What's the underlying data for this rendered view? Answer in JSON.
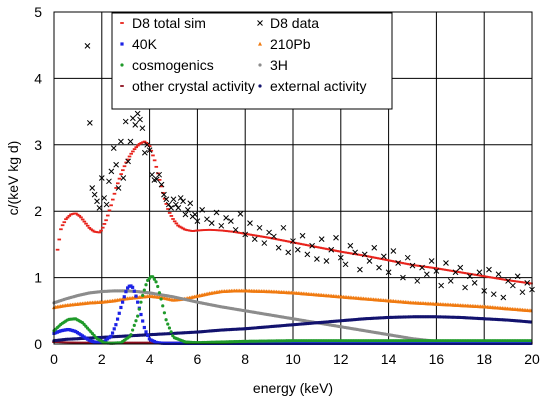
{
  "chart_data": {
    "type": "scatter",
    "xlabel": "energy (keV)",
    "ylabel": "c/(keV kg d)",
    "xlim": [
      0,
      20
    ],
    "ylim": [
      0,
      5
    ],
    "xticks": [
      "0",
      "2",
      "4",
      "6",
      "8",
      "10",
      "12",
      "14",
      "16",
      "18",
      "20"
    ],
    "yticks": [
      "0",
      "1",
      "2",
      "3",
      "4",
      "5"
    ],
    "grid": true,
    "legend_position": "top",
    "series": [
      {
        "name": "D8 total sim",
        "color": "#e8231c",
        "marker": "dash",
        "style": "dense",
        "x": [
          0.15,
          0.3,
          0.5,
          0.7,
          0.9,
          1.1,
          1.3,
          1.5,
          1.7,
          1.9,
          2.0,
          2.2,
          2.4,
          2.6,
          2.8,
          3.0,
          3.2,
          3.4,
          3.6,
          3.8,
          4.0,
          4.2,
          4.4,
          4.6,
          4.8,
          5.0,
          5.2,
          5.5,
          5.8,
          6.0,
          6.5,
          7.0,
          7.5,
          8.0,
          9.0,
          10.0,
          11.0,
          12.0,
          13.0,
          14.0,
          15.0,
          16.0,
          17.0,
          18.0,
          19.0,
          20.0
        ],
        "y": [
          1.42,
          1.75,
          1.88,
          1.95,
          1.97,
          1.92,
          1.83,
          1.74,
          1.69,
          1.68,
          1.72,
          1.88,
          2.1,
          2.35,
          2.55,
          2.72,
          2.85,
          2.95,
          3.02,
          3.05,
          2.98,
          2.78,
          2.5,
          2.22,
          2.0,
          1.87,
          1.78,
          1.72,
          1.7,
          1.71,
          1.72,
          1.71,
          1.69,
          1.66,
          1.6,
          1.53,
          1.46,
          1.39,
          1.33,
          1.26,
          1.19,
          1.14,
          1.08,
          1.02,
          0.96,
          0.91
        ]
      },
      {
        "name": "D8 data",
        "color": "#000000",
        "marker": "x",
        "style": "points",
        "x": [
          1.4,
          1.5,
          1.6,
          1.7,
          1.8,
          1.9,
          2.0,
          2.1,
          2.2,
          2.3,
          2.4,
          2.5,
          2.6,
          2.7,
          2.8,
          2.9,
          3.0,
          3.1,
          3.2,
          3.3,
          3.4,
          3.5,
          3.6,
          3.7,
          3.8,
          3.9,
          4.0,
          4.1,
          4.2,
          4.3,
          4.4,
          4.5,
          4.6,
          4.7,
          4.8,
          4.9,
          5.0,
          5.1,
          5.2,
          5.3,
          5.4,
          5.5,
          5.6,
          5.7,
          5.8,
          5.9,
          6.0,
          6.2,
          6.4,
          6.6,
          6.8,
          7.0,
          7.2,
          7.4,
          7.6,
          7.8,
          8.0,
          8.2,
          8.4,
          8.6,
          8.8,
          9.0,
          9.2,
          9.4,
          9.6,
          9.8,
          10.0,
          10.2,
          10.4,
          10.6,
          10.8,
          11.0,
          11.2,
          11.4,
          11.6,
          11.8,
          12.0,
          12.2,
          12.4,
          12.6,
          12.8,
          13.0,
          13.2,
          13.4,
          13.6,
          13.8,
          14.0,
          14.2,
          14.4,
          14.6,
          14.8,
          15.0,
          15.2,
          15.4,
          15.6,
          15.8,
          16.0,
          16.2,
          16.4,
          16.6,
          16.8,
          17.0,
          17.2,
          17.4,
          17.6,
          17.8,
          18.0,
          18.2,
          18.4,
          18.6,
          18.8,
          19.0,
          19.2,
          19.4,
          19.6,
          19.8,
          20.0
        ],
        "y": [
          4.49,
          3.33,
          2.35,
          2.25,
          2.15,
          2.05,
          2.5,
          2.2,
          2.1,
          2.45,
          2.6,
          2.95,
          2.7,
          2.35,
          3.05,
          2.5,
          3.35,
          2.75,
          3.05,
          3.4,
          3.3,
          3.47,
          3.38,
          3.25,
          2.88,
          3.0,
          2.92,
          2.55,
          2.47,
          2.48,
          2.55,
          2.4,
          2.25,
          2.18,
          2.1,
          2.05,
          2.18,
          2.1,
          2.05,
          2.2,
          2.15,
          1.95,
          2.02,
          2.12,
          1.92,
          1.95,
          1.85,
          2.02,
          1.88,
          1.82,
          1.98,
          1.78,
          1.9,
          1.85,
          1.72,
          1.96,
          1.65,
          1.82,
          1.58,
          1.75,
          1.52,
          1.68,
          1.62,
          1.45,
          1.75,
          1.38,
          1.55,
          1.42,
          1.63,
          1.35,
          1.48,
          1.28,
          1.58,
          1.25,
          1.42,
          1.6,
          1.3,
          1.2,
          1.48,
          1.38,
          1.12,
          1.35,
          1.25,
          1.45,
          1.15,
          1.32,
          1.08,
          1.4,
          1.22,
          1.0,
          1.3,
          1.18,
          0.95,
          1.15,
          1.05,
          1.25,
          1.1,
          0.88,
          1.22,
          0.95,
          1.08,
          1.15,
          0.85,
          1.02,
          0.92,
          1.08,
          0.8,
          1.12,
          0.75,
          1.05,
          0.7,
          0.95,
          0.88,
          1.02,
          0.78,
          0.92,
          0.82
        ]
      },
      {
        "name": "40K",
        "color": "#1c22e6",
        "marker": "square",
        "style": "dense",
        "x": [
          0.0,
          0.3,
          0.6,
          0.9,
          1.2,
          1.5,
          1.8,
          2.1,
          2.4,
          2.6,
          2.8,
          3.0,
          3.1,
          3.2,
          3.3,
          3.4,
          3.6,
          3.8,
          4.0,
          4.3,
          4.6,
          5.0,
          6.0,
          8.0,
          10.0,
          14.0,
          20.0
        ],
        "y": [
          0.16,
          0.2,
          0.22,
          0.19,
          0.12,
          0.05,
          0.02,
          0.04,
          0.12,
          0.3,
          0.55,
          0.78,
          0.86,
          0.88,
          0.85,
          0.76,
          0.5,
          0.22,
          0.07,
          0.02,
          0.01,
          0.01,
          0.01,
          0.01,
          0.01,
          0.01,
          0.01
        ]
      },
      {
        "name": "210Pb",
        "color": "#f07a10",
        "marker": "triangle",
        "style": "dense",
        "x": [
          0.0,
          0.5,
          1.0,
          1.5,
          2.0,
          2.5,
          3.0,
          3.5,
          4.0,
          4.5,
          5.0,
          5.5,
          6.0,
          6.5,
          7.0,
          7.5,
          8.0,
          9.0,
          10.0,
          11.0,
          12.0,
          13.0,
          14.0,
          15.0,
          16.0,
          17.0,
          18.0,
          19.0,
          20.0
        ],
        "y": [
          0.55,
          0.58,
          0.6,
          0.62,
          0.63,
          0.65,
          0.68,
          0.7,
          0.72,
          0.7,
          0.66,
          0.68,
          0.72,
          0.76,
          0.79,
          0.8,
          0.8,
          0.79,
          0.77,
          0.74,
          0.71,
          0.68,
          0.65,
          0.62,
          0.6,
          0.58,
          0.56,
          0.53,
          0.5
        ]
      },
      {
        "name": "cosmogenics",
        "color": "#1f9a2a",
        "marker": "circle",
        "style": "dense",
        "x": [
          0.0,
          0.3,
          0.6,
          0.9,
          1.2,
          1.5,
          1.8,
          2.1,
          2.4,
          2.8,
          3.2,
          3.5,
          3.7,
          3.9,
          4.1,
          4.3,
          4.5,
          4.7,
          5.0,
          5.5,
          6.0,
          8.0,
          10.0,
          14.0,
          20.0
        ],
        "y": [
          0.2,
          0.3,
          0.37,
          0.38,
          0.32,
          0.2,
          0.08,
          0.02,
          0.01,
          0.02,
          0.12,
          0.42,
          0.72,
          0.95,
          1.03,
          0.92,
          0.65,
          0.35,
          0.1,
          0.03,
          0.02,
          0.04,
          0.05,
          0.05,
          0.05
        ]
      },
      {
        "name": "3H",
        "color": "#8c8c8c",
        "marker": "circle",
        "style": "dense",
        "x": [
          0.0,
          0.5,
          1.0,
          1.5,
          2.0,
          2.5,
          3.0,
          3.5,
          4.0,
          4.5,
          5.0,
          5.5,
          6.0,
          7.0,
          8.0,
          9.0,
          10.0,
          11.0,
          12.0,
          13.0,
          14.0,
          15.0,
          16.0,
          17.0,
          18.0,
          19.0,
          20.0
        ],
        "y": [
          0.62,
          0.68,
          0.73,
          0.77,
          0.79,
          0.8,
          0.8,
          0.79,
          0.77,
          0.74,
          0.71,
          0.67,
          0.63,
          0.56,
          0.5,
          0.44,
          0.38,
          0.32,
          0.26,
          0.2,
          0.14,
          0.08,
          0.04,
          0.02,
          0.01,
          0.01,
          0.01
        ]
      },
      {
        "name": "other crystal activity",
        "color": "#8e0f1e",
        "marker": "dash",
        "style": "dense",
        "x": [
          0.0,
          1.0,
          2.0,
          4.0,
          8.0,
          12.0,
          16.0,
          20.0
        ],
        "y": [
          0.03,
          0.02,
          0.02,
          0.02,
          0.02,
          0.02,
          0.02,
          0.02
        ]
      },
      {
        "name": "external activity",
        "color": "#12126e",
        "marker": "circle",
        "style": "dense",
        "x": [
          0.0,
          0.5,
          1.0,
          1.5,
          2.0,
          3.0,
          4.0,
          5.0,
          6.0,
          7.0,
          8.0,
          9.0,
          10.0,
          11.0,
          12.0,
          13.0,
          14.0,
          15.0,
          16.0,
          17.0,
          18.0,
          19.0,
          20.0
        ],
        "y": [
          0.05,
          0.07,
          0.08,
          0.09,
          0.1,
          0.12,
          0.14,
          0.16,
          0.18,
          0.21,
          0.23,
          0.26,
          0.29,
          0.32,
          0.35,
          0.38,
          0.4,
          0.41,
          0.41,
          0.4,
          0.38,
          0.36,
          0.33
        ]
      }
    ]
  }
}
